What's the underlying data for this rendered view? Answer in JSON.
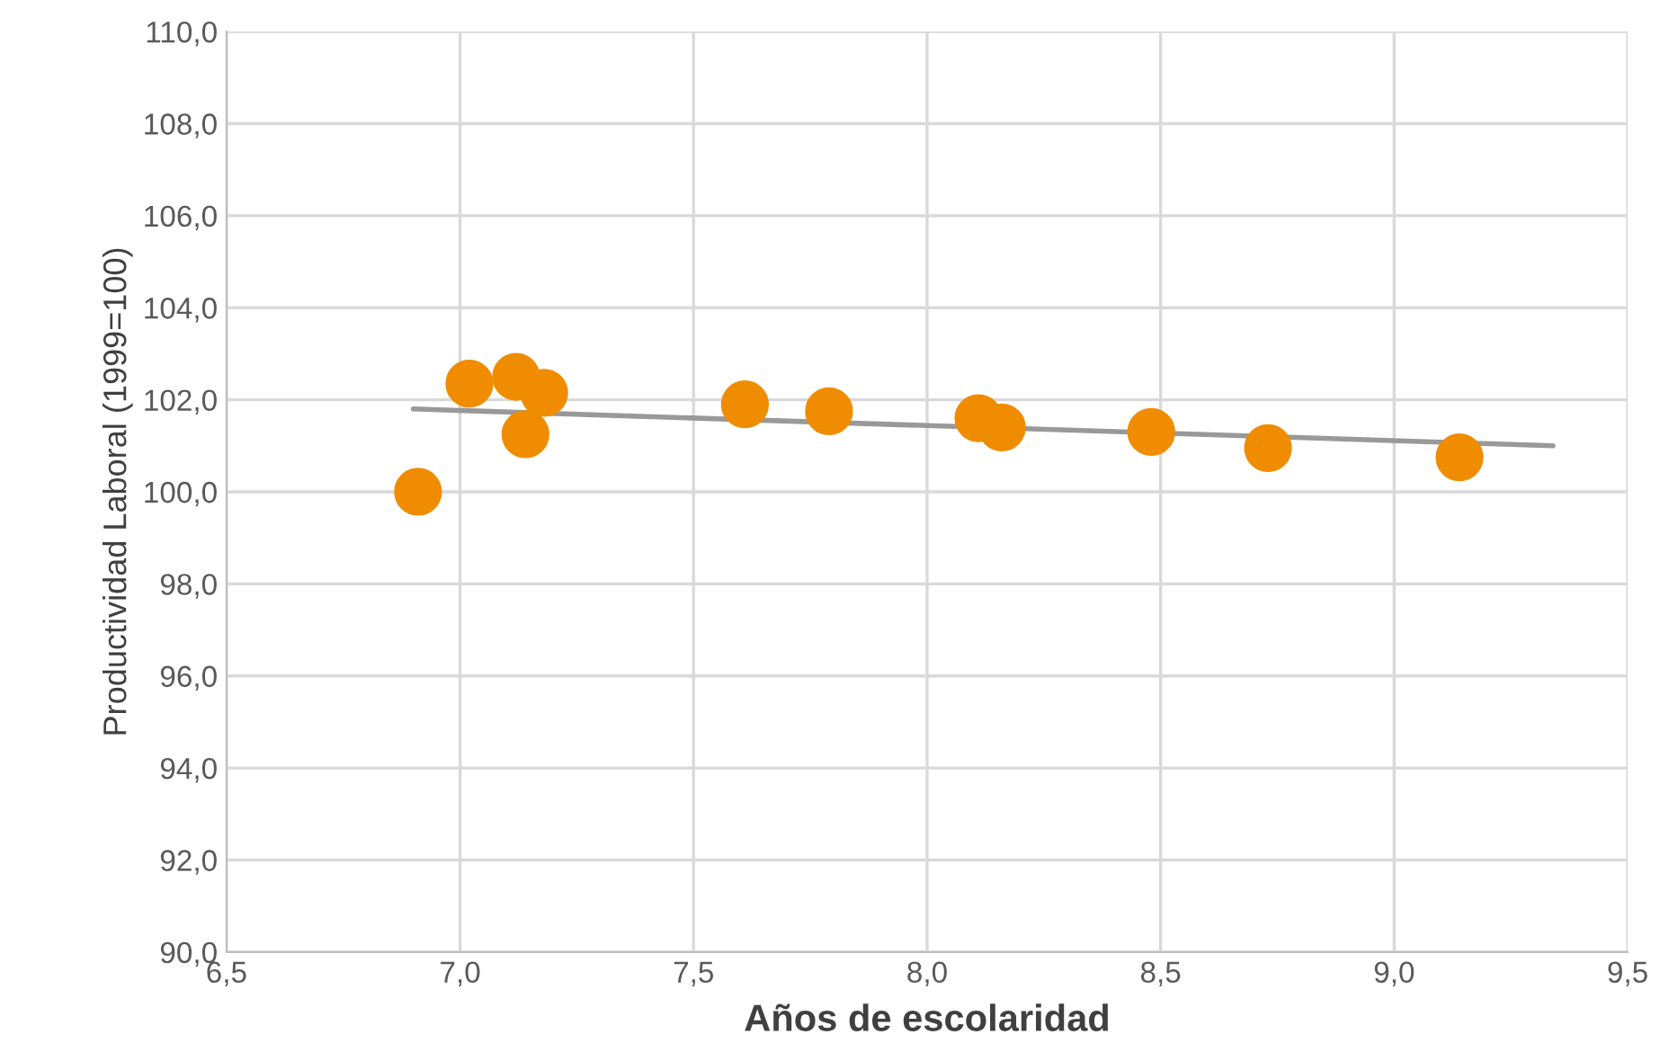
{
  "chart_data": {
    "type": "scatter",
    "xlabel": "Años de escolaridad",
    "ylabel": "Productividad Laboral (1999=100)",
    "xlim": [
      6.5,
      9.5
    ],
    "ylim": [
      90,
      110
    ],
    "xticks": [
      {
        "value": 6.5,
        "label": "6,5"
      },
      {
        "value": 7.0,
        "label": "7,0"
      },
      {
        "value": 7.5,
        "label": "7,5"
      },
      {
        "value": 8.0,
        "label": "8,0"
      },
      {
        "value": 8.5,
        "label": "8,5"
      },
      {
        "value": 9.0,
        "label": "9,0"
      },
      {
        "value": 9.5,
        "label": "9,5"
      }
    ],
    "yticks": [
      {
        "value": 90,
        "label": "90,0"
      },
      {
        "value": 92,
        "label": "92,0"
      },
      {
        "value": 94,
        "label": "94,0"
      },
      {
        "value": 96,
        "label": "96,0"
      },
      {
        "value": 98,
        "label": "98,0"
      },
      {
        "value": 100,
        "label": "100,0"
      },
      {
        "value": 102,
        "label": "102,0"
      },
      {
        "value": 104,
        "label": "104,0"
      },
      {
        "value": 106,
        "label": "106,0"
      },
      {
        "value": 108,
        "label": "108,0"
      },
      {
        "value": 110,
        "label": "110,0"
      }
    ],
    "grid": true,
    "legend": false,
    "series": [
      {
        "marker": "circle",
        "color": "#f08c00",
        "x": [
          6.91,
          7.02,
          7.12,
          7.18,
          7.14,
          7.61,
          7.79,
          8.11,
          8.16,
          8.48,
          8.73,
          9.14
        ],
        "values": [
          100.0,
          102.35,
          102.5,
          102.15,
          101.25,
          101.9,
          101.75,
          101.6,
          101.4,
          101.3,
          100.95,
          100.75
        ]
      },
      {
        "type": "line",
        "marker": "none",
        "color": "#999999",
        "x": [
          6.9,
          9.34
        ],
        "values": [
          101.8,
          101.0
        ]
      }
    ]
  }
}
